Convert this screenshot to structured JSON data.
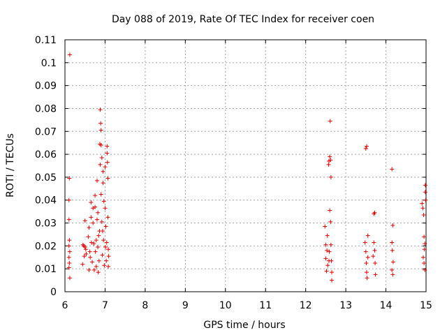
{
  "chart_data": {
    "type": "scatter",
    "title": "Day 088 of 2019, Rate Of TEC Index for receiver coen",
    "xlabel": "GPS time / hours",
    "ylabel": "ROTI / TECUs",
    "xlim": [
      6,
      15
    ],
    "ylim": [
      0,
      0.11
    ],
    "xticks": [
      "6",
      "7",
      "8",
      "9",
      "10",
      "11",
      "12",
      "13",
      "14",
      "15"
    ],
    "yticks": [
      "0",
      "0.01",
      "0.02",
      "0.03",
      "0.04",
      "0.05",
      "0.06",
      "0.07",
      "0.08",
      "0.09",
      "0.1",
      "0.11"
    ],
    "grid": true,
    "marker": "plus",
    "color": "#e00000",
    "series": [
      {
        "values": [
          [
            6.12,
            0.1035
          ],
          [
            6.11,
            0.0495
          ],
          [
            6.1,
            0.04
          ],
          [
            6.1,
            0.0315
          ],
          [
            6.11,
            0.0225
          ],
          [
            6.1,
            0.02
          ],
          [
            6.12,
            0.0175
          ],
          [
            6.1,
            0.015
          ],
          [
            6.11,
            0.0125
          ],
          [
            6.1,
            0.0105
          ],
          [
            6.12,
            0.006
          ],
          [
            6.45,
            0.0205
          ],
          [
            6.47,
            0.02
          ],
          [
            6.5,
            0.0195
          ],
          [
            6.52,
            0.0185
          ],
          [
            6.44,
            0.012
          ],
          [
            6.48,
            0.0155
          ],
          [
            6.5,
            0.031
          ],
          [
            6.53,
            0.0165
          ],
          [
            6.58,
            0.024
          ],
          [
            6.6,
            0.028
          ],
          [
            6.62,
            0.0175
          ],
          [
            6.6,
            0.0095
          ],
          [
            6.63,
            0.015
          ],
          [
            6.65,
            0.0325
          ],
          [
            6.65,
            0.039
          ],
          [
            6.68,
            0.013
          ],
          [
            6.7,
            0.03
          ],
          [
            6.7,
            0.0365
          ],
          [
            6.72,
            0.021
          ],
          [
            6.73,
            0.0095
          ],
          [
            6.75,
            0.037
          ],
          [
            6.75,
            0.042
          ],
          [
            6.78,
            0.0225
          ],
          [
            6.78,
            0.011
          ],
          [
            6.8,
            0.0315
          ],
          [
            6.8,
            0.0485
          ],
          [
            6.82,
            0.0345
          ],
          [
            6.82,
            0.0195
          ],
          [
            6.83,
            0.0085
          ],
          [
            6.85,
            0.0135
          ],
          [
            6.86,
            0.0265
          ],
          [
            6.88,
            0.0555
          ],
          [
            6.88,
            0.0795
          ],
          [
            6.89,
            0.0735
          ],
          [
            6.9,
            0.0705
          ],
          [
            6.9,
            0.064
          ],
          [
            6.87,
            0.0645
          ],
          [
            6.92,
            0.0585
          ],
          [
            6.92,
            0.0305
          ],
          [
            6.93,
            0.016
          ],
          [
            6.95,
            0.0525
          ],
          [
            6.95,
            0.0475
          ],
          [
            6.96,
            0.0225
          ],
          [
            6.97,
            0.0395
          ],
          [
            6.98,
            0.0115
          ],
          [
            7.0,
            0.0545
          ],
          [
            7.0,
            0.0365
          ],
          [
            7.01,
            0.0195
          ],
          [
            7.02,
            0.0285
          ],
          [
            7.03,
            0.0135
          ],
          [
            7.05,
            0.0635
          ],
          [
            7.05,
            0.0605
          ],
          [
            7.06,
            0.0565
          ],
          [
            7.07,
            0.0495
          ],
          [
            7.07,
            0.0325
          ],
          [
            7.08,
            0.0185
          ],
          [
            7.08,
            0.011
          ],
          [
            7.09,
            0.0155
          ],
          [
            6.76,
            0.0175
          ],
          [
            6.84,
            0.0245
          ],
          [
            6.94,
            0.0265
          ],
          [
            7.04,
            0.0215
          ],
          [
            6.66,
            0.0215
          ],
          [
            6.9,
            0.0425
          ],
          [
            12.48,
            0.0285
          ],
          [
            12.5,
            0.0205
          ],
          [
            12.5,
            0.0145
          ],
          [
            12.52,
            0.009
          ],
          [
            12.53,
            0.018
          ],
          [
            12.54,
            0.0245
          ],
          [
            12.55,
            0.0115
          ],
          [
            12.57,
            0.0555
          ],
          [
            12.58,
            0.057
          ],
          [
            12.6,
            0.059
          ],
          [
            12.61,
            0.0745
          ],
          [
            12.62,
            0.0575
          ],
          [
            12.6,
            0.0355
          ],
          [
            12.62,
            0.0305
          ],
          [
            12.63,
            0.0205
          ],
          [
            12.64,
            0.0135
          ],
          [
            12.65,
            0.0085
          ],
          [
            12.65,
            0.005
          ],
          [
            12.58,
            0.0135
          ],
          [
            12.63,
            0.05
          ],
          [
            12.59,
            0.0175
          ],
          [
            13.48,
            0.0215
          ],
          [
            13.5,
            0.0625
          ],
          [
            13.52,
            0.0635
          ],
          [
            13.5,
            0.0175
          ],
          [
            13.51,
            0.0125
          ],
          [
            13.52,
            0.0085
          ],
          [
            13.53,
            0.006
          ],
          [
            13.55,
            0.0245
          ],
          [
            13.55,
            0.015
          ],
          [
            13.7,
            0.034
          ],
          [
            13.72,
            0.0345
          ],
          [
            13.7,
            0.0215
          ],
          [
            13.72,
            0.018
          ],
          [
            13.73,
            0.0125
          ],
          [
            13.74,
            0.0075
          ],
          [
            13.68,
            0.0155
          ],
          [
            14.15,
            0.0535
          ],
          [
            14.17,
            0.029
          ],
          [
            14.15,
            0.0215
          ],
          [
            14.16,
            0.018
          ],
          [
            14.18,
            0.013
          ],
          [
            14.15,
            0.0095
          ],
          [
            14.17,
            0.0075
          ],
          [
            14.9,
            0.0385
          ],
          [
            14.92,
            0.0365
          ],
          [
            14.94,
            0.0335
          ],
          [
            14.95,
            0.024
          ],
          [
            14.96,
            0.0185
          ],
          [
            14.95,
            0.0125
          ],
          [
            14.97,
            0.0095
          ],
          [
            14.98,
            0.0465
          ],
          [
            14.98,
            0.0435
          ],
          [
            14.99,
            0.04
          ],
          [
            14.93,
            0.015
          ],
          [
            14.97,
            0.021
          ]
        ]
      }
    ]
  }
}
